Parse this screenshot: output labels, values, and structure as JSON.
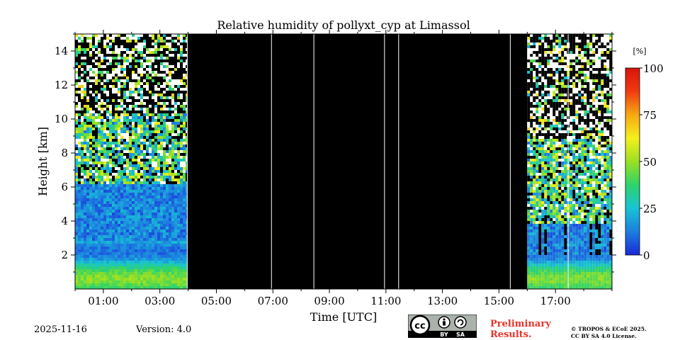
{
  "chart_data": {
    "type": "heatmap",
    "title": "Relative humidity of pollyxt_cyp at Limassol",
    "xlabel": "Time [UTC]",
    "ylabel": "Height [km]",
    "xlim": [
      0,
      19
    ],
    "ylim": [
      0,
      15
    ],
    "x_ticks": [
      {
        "value": 1,
        "label": "01:00"
      },
      {
        "value": 3,
        "label": "03:00"
      },
      {
        "value": 5,
        "label": "05:00"
      },
      {
        "value": 7,
        "label": "07:00"
      },
      {
        "value": 9,
        "label": "09:00"
      },
      {
        "value": 11,
        "label": "11:00"
      },
      {
        "value": 13,
        "label": "13:00"
      },
      {
        "value": 15,
        "label": "15:00"
      },
      {
        "value": 17,
        "label": "17:00"
      }
    ],
    "y_ticks": [
      {
        "value": 2,
        "label": "2"
      },
      {
        "value": 4,
        "label": "4"
      },
      {
        "value": 6,
        "label": "6"
      },
      {
        "value": 8,
        "label": "8"
      },
      {
        "value": 10,
        "label": "10"
      },
      {
        "value": 12,
        "label": "12"
      },
      {
        "value": 14,
        "label": "14"
      }
    ],
    "no_data_periods": [
      [
        3.97,
        16.0
      ]
    ],
    "gap_lines": [
      3.97,
      6.95,
      8.45,
      10.95,
      11.45,
      15.4,
      17.45
    ],
    "measurement_periods": [
      {
        "start": 0.0,
        "end": 3.97,
        "boundary_layer_km": 3.0,
        "moist_layer_top_km": 6.2,
        "cloud_top_km": 10.5
      },
      {
        "start": 16.0,
        "end": 19.0,
        "boundary_layer_km": 2.1,
        "moist_layer_top_km": 4.0,
        "cloud_top_km": 9.0
      }
    ],
    "colorbar": {
      "unit_label": "[%]",
      "range": [
        0,
        100
      ],
      "ticks": [
        {
          "value": 0,
          "label": "0"
        },
        {
          "value": 25,
          "label": "25"
        },
        {
          "value": 50,
          "label": "50"
        },
        {
          "value": 75,
          "label": "75"
        },
        {
          "value": 100,
          "label": "100"
        }
      ],
      "colors": [
        "#1a28d8",
        "#1d7ee0",
        "#18c4d4",
        "#2ed36a",
        "#9be022",
        "#f4f01c",
        "#f6a812",
        "#f03a10",
        "#d8140c"
      ]
    }
  },
  "footer": {
    "date": "2025-11-16",
    "version": "Version: 4.0",
    "preliminary_line1": "Preliminary",
    "preliminary_line2": "Results.",
    "license_line1": "© TROPOS & ECoE 2025.",
    "license_line2": "CC BY SA 4.0 License.",
    "badge_cc": "cc",
    "badge_by": "BY",
    "badge_sa": "SA"
  }
}
